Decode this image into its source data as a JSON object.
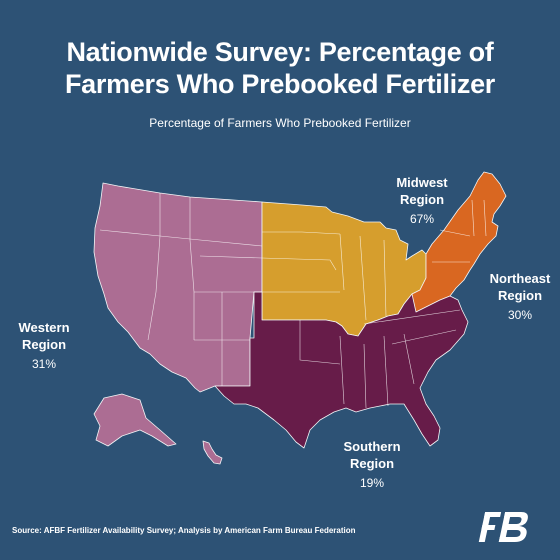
{
  "title_line1": "Nationwide Survey: Percentage of",
  "title_line2": "Farmers Who Prebooked Fertilizer",
  "subtitle": "Percentage of Farmers Who Prebooked Fertilizer",
  "regions": {
    "western": {
      "name_line1": "Western",
      "name_line2": "Region",
      "value": "31%",
      "color": "#b36f95"
    },
    "midwest": {
      "name_line1": "Midwest",
      "name_line2": "Region",
      "value": "67%",
      "color": "#e0a32a"
    },
    "northeast": {
      "name_line1": "Northeast",
      "name_line2": "Region",
      "value": "30%",
      "color": "#e3691d"
    },
    "southern": {
      "name_line1": "Southern",
      "name_line2": "Region",
      "value": "19%",
      "color": "#6b1a47"
    }
  },
  "source": "Source: AFBF Fertilizer Availability Survey; Analysis by American Farm Bureau Federation",
  "logo": {
    "icon": "farm-bureau-logo",
    "text": "FB"
  }
}
